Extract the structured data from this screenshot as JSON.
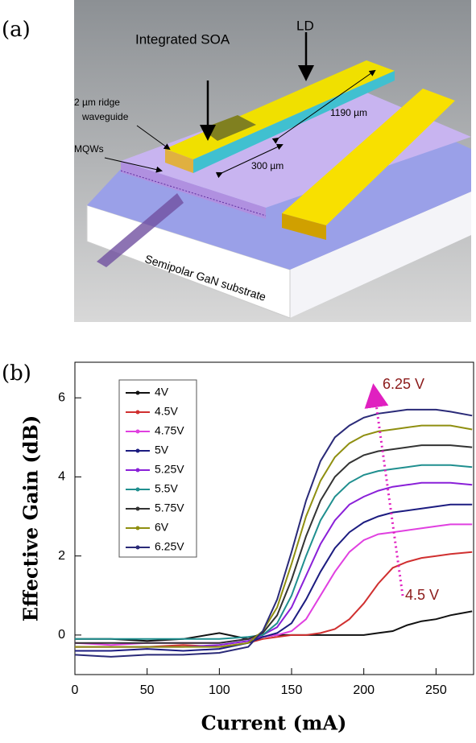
{
  "figure_a": {
    "panel_label": "(a)",
    "labels": [
      "Integrated SOA",
      "LD",
      "2 µm ridge",
      "waveguide",
      "MQWs",
      "1190 µm",
      "300 µm",
      "Semipolar GaN substrate"
    ]
  },
  "chart_data": {
    "type": "line",
    "panel_label": "(b)",
    "x_label": "Current (mA)",
    "y_label": "Effective Gain (dB)",
    "x": [
      0,
      25,
      50,
      75,
      100,
      120,
      130,
      140,
      150,
      160,
      170,
      180,
      190,
      200,
      210,
      220,
      230,
      240,
      250,
      260,
      275
    ],
    "series": [
      {
        "name": "4V",
        "color": "#111111",
        "values": [
          -0.1,
          -0.1,
          -0.15,
          -0.1,
          0.05,
          -0.1,
          -0.05,
          0,
          0,
          0,
          0,
          0,
          0,
          0,
          0.05,
          0.1,
          0.25,
          0.35,
          0.4,
          0.5,
          0.6
        ]
      },
      {
        "name": "4.5V",
        "color": "#d03030",
        "values": [
          -0.3,
          -0.3,
          -0.3,
          -0.25,
          -0.3,
          -0.2,
          -0.1,
          -0.05,
          0,
          0,
          0.05,
          0.15,
          0.4,
          0.8,
          1.3,
          1.7,
          1.85,
          1.95,
          2.0,
          2.05,
          2.1
        ]
      },
      {
        "name": "4.75V",
        "color": "#e040e0",
        "values": [
          -0.2,
          -0.25,
          -0.2,
          -0.2,
          -0.2,
          -0.1,
          -0.05,
          0,
          0.1,
          0.4,
          1.0,
          1.6,
          2.1,
          2.4,
          2.55,
          2.6,
          2.65,
          2.7,
          2.75,
          2.8,
          2.8
        ]
      },
      {
        "name": "5V",
        "color": "#1c1c80",
        "values": [
          -0.4,
          -0.4,
          -0.35,
          -0.4,
          -0.35,
          -0.2,
          -0.05,
          0.05,
          0.3,
          0.9,
          1.6,
          2.2,
          2.6,
          2.85,
          3.0,
          3.1,
          3.15,
          3.2,
          3.25,
          3.3,
          3.3
        ]
      },
      {
        "name": "5.25V",
        "color": "#8a20d8",
        "values": [
          -0.3,
          -0.3,
          -0.3,
          -0.3,
          -0.25,
          -0.15,
          0,
          0.2,
          0.7,
          1.5,
          2.3,
          2.9,
          3.3,
          3.5,
          3.65,
          3.75,
          3.8,
          3.85,
          3.85,
          3.85,
          3.8
        ]
      },
      {
        "name": "5.5V",
        "color": "#208f8f",
        "values": [
          -0.1,
          -0.1,
          -0.1,
          -0.1,
          -0.1,
          -0.05,
          0,
          0.3,
          1.0,
          2.0,
          2.9,
          3.5,
          3.85,
          4.05,
          4.15,
          4.2,
          4.25,
          4.3,
          4.3,
          4.3,
          4.25
        ]
      },
      {
        "name": "5.75V",
        "color": "#333333",
        "values": [
          -0.2,
          -0.2,
          -0.2,
          -0.2,
          -0.2,
          -0.1,
          0.05,
          0.5,
          1.4,
          2.5,
          3.4,
          4.0,
          4.35,
          4.55,
          4.65,
          4.7,
          4.75,
          4.8,
          4.8,
          4.8,
          4.75
        ]
      },
      {
        "name": "6V",
        "color": "#8f8f10",
        "values": [
          -0.3,
          -0.3,
          -0.3,
          -0.3,
          -0.3,
          -0.2,
          0.1,
          0.7,
          1.8,
          3.0,
          3.9,
          4.5,
          4.85,
          5.05,
          5.15,
          5.2,
          5.25,
          5.3,
          5.3,
          5.3,
          5.2
        ]
      },
      {
        "name": "6.25V",
        "color": "#2a2a78",
        "values": [
          -0.5,
          -0.55,
          -0.5,
          -0.5,
          -0.45,
          -0.3,
          0.1,
          0.9,
          2.1,
          3.4,
          4.4,
          5.0,
          5.3,
          5.5,
          5.6,
          5.65,
          5.7,
          5.7,
          5.7,
          5.65,
          5.55
        ]
      }
    ],
    "xlim": [
      0,
      276
    ],
    "ylim": [
      -1,
      6.9
    ],
    "xticks": [
      0,
      50,
      100,
      150,
      200,
      250
    ],
    "yticks": [
      0,
      2,
      4,
      6
    ],
    "annotations": [
      "6.25 V",
      "4.5 V"
    ],
    "annotation_color": "#8b1a1a"
  }
}
